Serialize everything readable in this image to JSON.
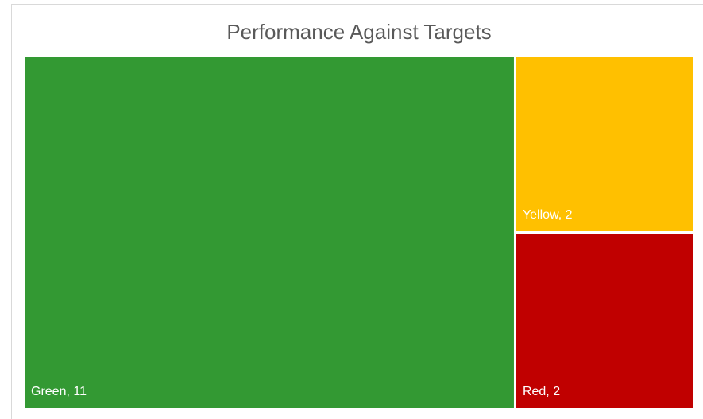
{
  "chart_data": {
    "type": "treemap",
    "title": "Performance Against Targets",
    "categories": [
      "Green",
      "Yellow",
      "Red"
    ],
    "values": [
      11,
      2,
      2
    ],
    "value_labels": [
      "Green, 11",
      "Yellow, 2",
      "Red, 2"
    ],
    "colors": [
      "#339933",
      "#ffc000",
      "#c00000"
    ]
  }
}
